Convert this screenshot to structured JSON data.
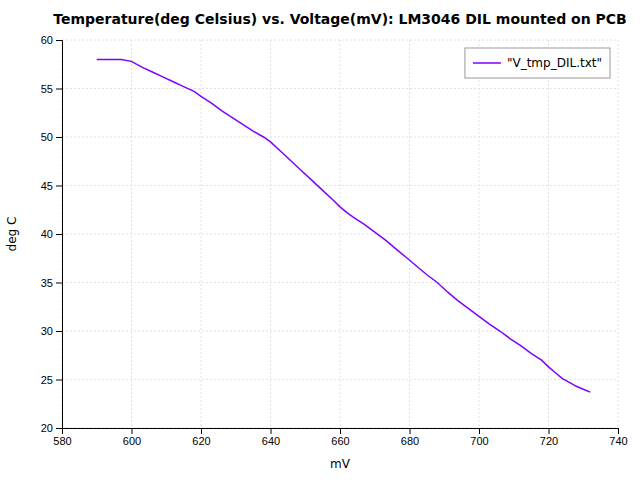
{
  "chart_data": {
    "type": "line",
    "title": "Temperature(deg Celsius) vs. Voltage(mV): LM3046 DIL mounted on PCB",
    "xlabel": "mV",
    "ylabel": "deg C",
    "x": [
      590,
      594,
      597,
      600,
      601,
      603,
      606,
      609,
      612,
      615,
      618,
      620,
      623,
      626,
      629,
      632,
      635,
      638,
      640,
      643,
      646,
      649,
      652,
      655,
      658,
      660,
      662,
      664,
      667,
      670,
      673,
      676,
      679,
      682,
      685,
      688,
      691,
      694,
      697,
      700,
      703,
      706,
      709,
      712,
      715,
      718,
      720,
      722,
      724,
      726,
      728,
      730,
      732
    ],
    "series": [
      {
        "name": "\"V_tmp_DIL.txt\"",
        "color": "#7f00ff",
        "values": [
          58.0,
          58.0,
          58.0,
          57.8,
          57.6,
          57.2,
          56.7,
          56.2,
          55.7,
          55.2,
          54.7,
          54.2,
          53.5,
          52.7,
          52.0,
          51.3,
          50.6,
          50.0,
          49.5,
          48.5,
          47.5,
          46.5,
          45.5,
          44.5,
          43.5,
          42.8,
          42.2,
          41.7,
          41.0,
          40.2,
          39.4,
          38.5,
          37.6,
          36.7,
          35.8,
          35.0,
          34.0,
          33.1,
          32.3,
          31.5,
          30.7,
          30.0,
          29.2,
          28.5,
          27.7,
          27.0,
          26.3,
          25.7,
          25.1,
          24.7,
          24.3,
          24.0,
          23.7
        ]
      }
    ],
    "xlim": [
      580,
      740
    ],
    "ylim": [
      20,
      60
    ],
    "xticks": [
      580,
      600,
      620,
      640,
      660,
      680,
      700,
      720,
      740
    ],
    "yticks": [
      20,
      25,
      30,
      35,
      40,
      45,
      50,
      55,
      60
    ],
    "grid": true,
    "legend": "top-right"
  }
}
